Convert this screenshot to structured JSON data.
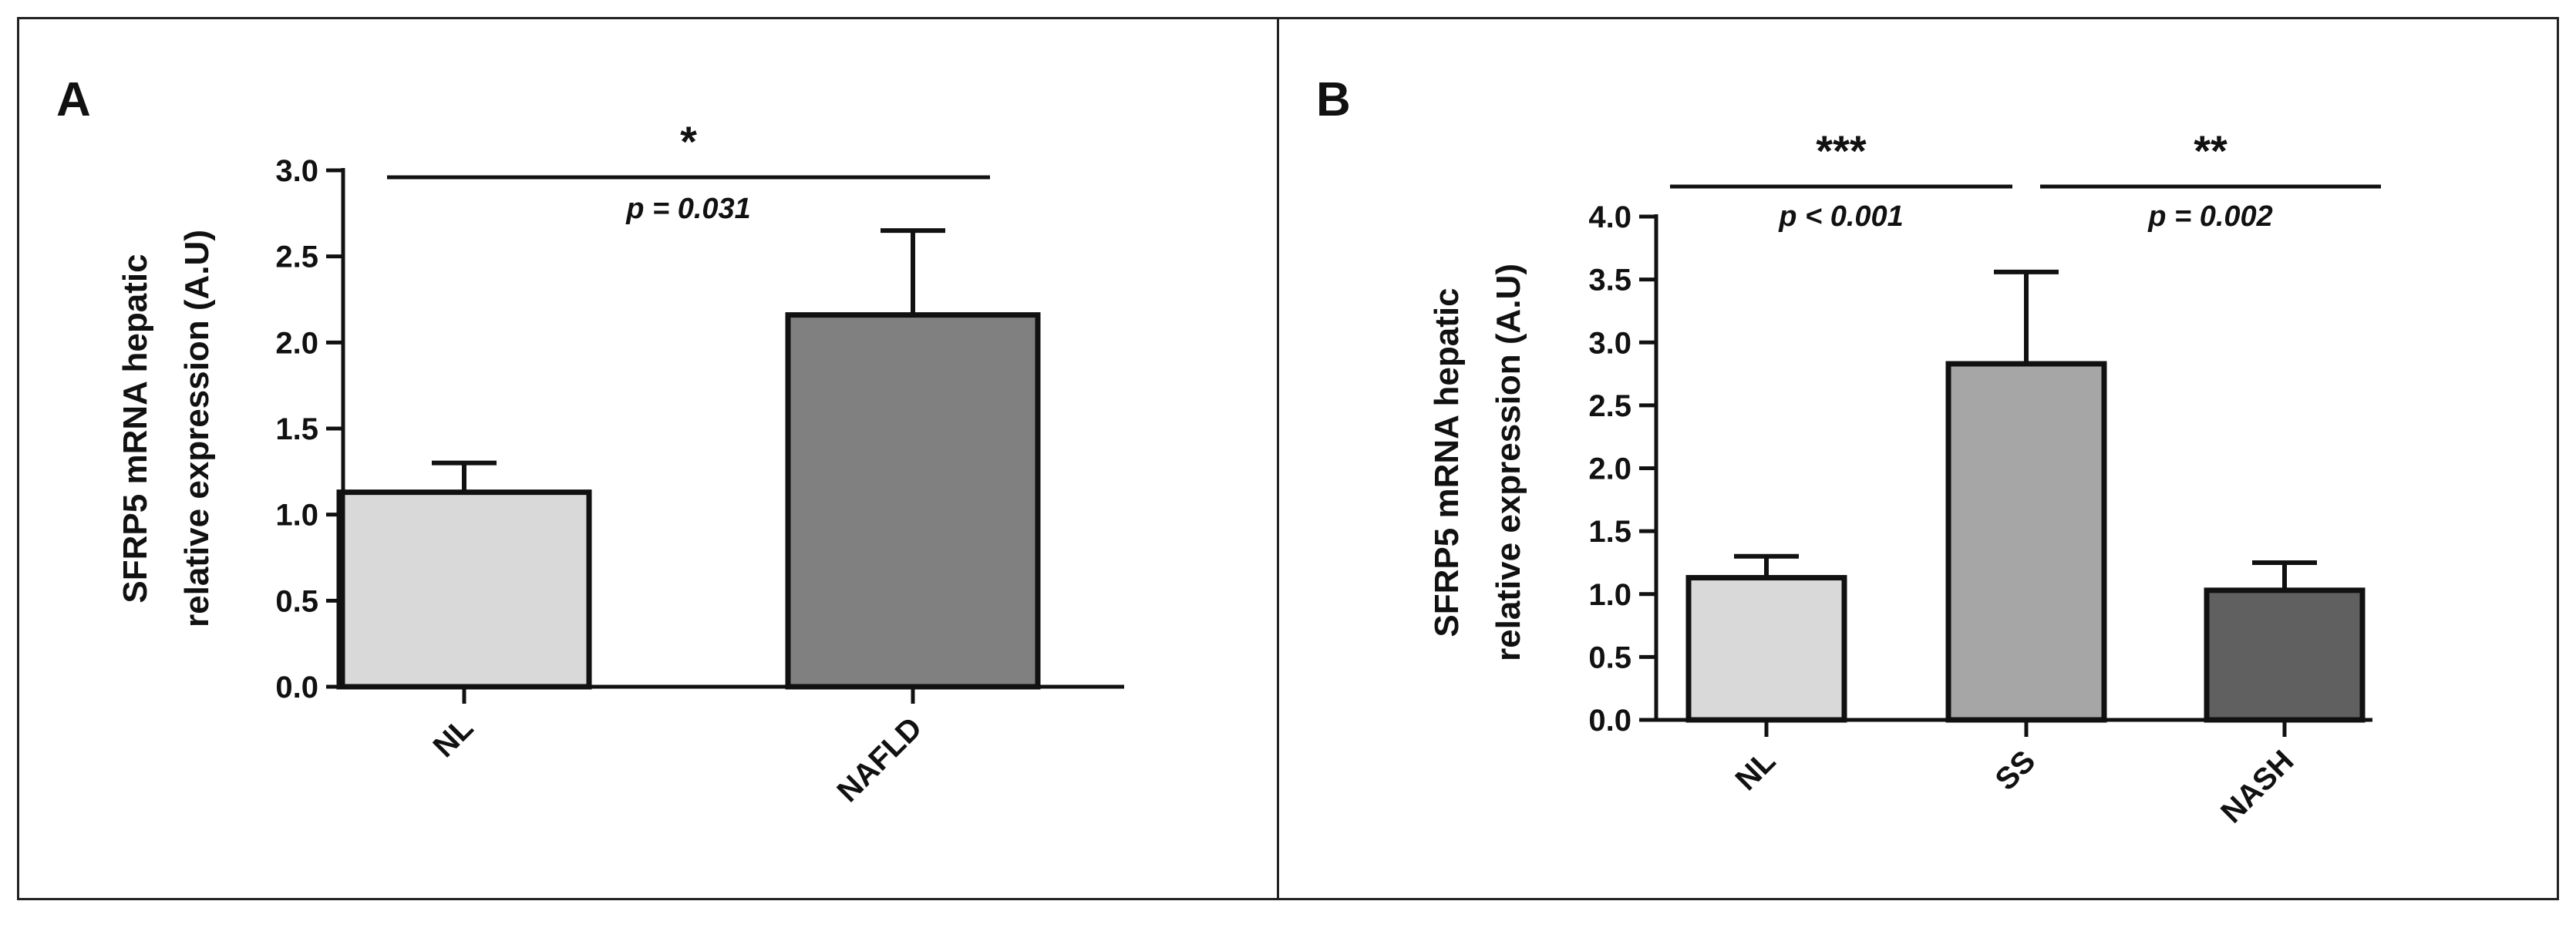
{
  "chart_data": [
    {
      "type": "bar",
      "panel_label": "A",
      "ylabel_line1": "SFRP5 mRNA hepatic",
      "ylabel_line2": "relative expression (A.U)",
      "xlabel": "",
      "ylim": [
        0,
        3.0
      ],
      "yticks": [
        "0.0",
        "0.5",
        "1.0",
        "1.5",
        "2.0",
        "2.5",
        "3.0"
      ],
      "categories": [
        "NL",
        "NAFLD"
      ],
      "values": [
        1.13,
        2.16
      ],
      "errors": [
        0.17,
        0.49
      ],
      "colors": [
        "#d9d9d9",
        "#808080"
      ],
      "significance": [
        {
          "from": 0,
          "to": 1,
          "stars": "*",
          "p_text": "p = 0.031"
        }
      ]
    },
    {
      "type": "bar",
      "panel_label": "B",
      "ylabel_line1": "SFRP5 mRNA hepatic",
      "ylabel_line2": "relative expression (A.U)",
      "xlabel": "",
      "ylim": [
        0,
        4.0
      ],
      "yticks": [
        "0.0",
        "0.5",
        "1.0",
        "1.5",
        "2.0",
        "2.5",
        "3.0",
        "3.5",
        "4.0"
      ],
      "categories": [
        "NL",
        "SS",
        "NASH"
      ],
      "values": [
        1.13,
        2.83,
        1.03
      ],
      "errors": [
        0.17,
        0.73,
        0.22
      ],
      "colors": [
        "#d9d9d9",
        "#a6a6a6",
        "#606060"
      ],
      "significance": [
        {
          "from": 0,
          "to": 1,
          "stars": "***",
          "p_text": "p < 0.001"
        },
        {
          "from": 1,
          "to": 2,
          "stars": "**",
          "p_text": "p = 0.002"
        }
      ]
    }
  ]
}
